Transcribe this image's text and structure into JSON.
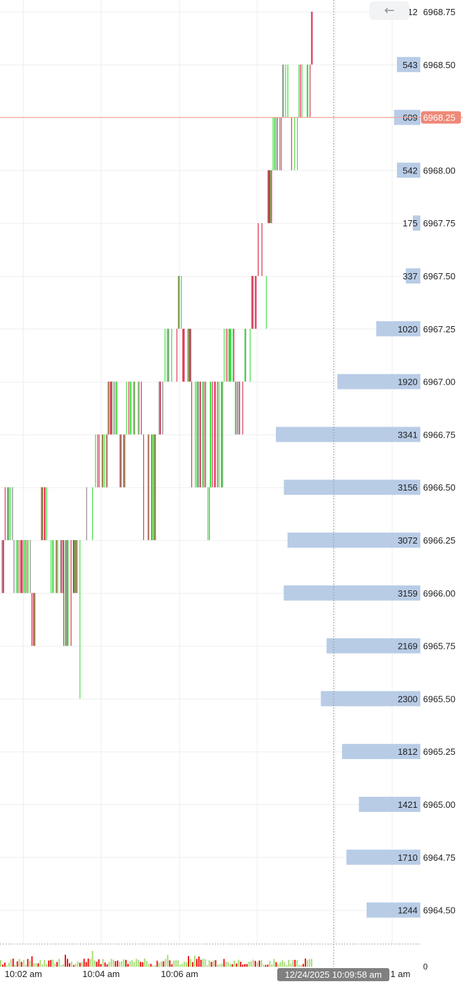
{
  "toolbar": {
    "back_icon": "arrow-left-icon"
  },
  "colors": {
    "up": "#44dd44",
    "down": "#dd3355",
    "neutral": "#888888",
    "profile_bar": "#b8cce6",
    "last_price_line": "#f5a89a",
    "last_price_badge": "#ee8877",
    "crosshair_badge": "#808080",
    "volume_up": "#a8dc78",
    "volume_down": "#ee1111",
    "grid": "#eeeeee"
  },
  "chart_data": {
    "type": "bar",
    "description_kind": "tick-chart-with-volume-profile",
    "price_axis": {
      "min": 6964.25,
      "max": 6968.875,
      "tick_step": 0.25,
      "ticks": [
        "6964.50",
        "6964.75",
        "6965.00",
        "6965.25",
        "6965.50",
        "6965.75",
        "6966.00",
        "6966.25",
        "6966.50",
        "6966.75",
        "6967.00",
        "6967.25",
        "6967.50",
        "6967.75",
        "6968.00",
        "6968.25",
        "6968.50",
        "6968.75"
      ]
    },
    "time_axis": {
      "labels": [
        "10:02 am",
        "10:04 am",
        "10:06 am",
        "1 am"
      ]
    },
    "last_price": "6968.25",
    "crosshair_label": "12/24/2025 10:09:58 am",
    "volume_axis_label": "0",
    "volume_profile": [
      {
        "price": 6968.75,
        "volume": 12
      },
      {
        "price": 6968.5,
        "volume": 543
      },
      {
        "price": 6968.25,
        "volume": 609
      },
      {
        "price": 6968.0,
        "volume": 542
      },
      {
        "price": 6967.75,
        "volume": 175
      },
      {
        "price": 6967.5,
        "volume": 337
      },
      {
        "price": 6967.25,
        "volume": 1020
      },
      {
        "price": 6967.0,
        "volume": 1920
      },
      {
        "price": 6966.75,
        "volume": 3341
      },
      {
        "price": 6966.5,
        "volume": 3156
      },
      {
        "price": 6966.25,
        "volume": 3072
      },
      {
        "price": 6966.0,
        "volume": 3159
      },
      {
        "price": 6965.75,
        "volume": 2169
      },
      {
        "price": 6965.5,
        "volume": 2300
      },
      {
        "price": 6965.25,
        "volume": 1812
      },
      {
        "price": 6965.0,
        "volume": 1421
      },
      {
        "price": 6964.75,
        "volume": 1710
      },
      {
        "price": 6964.5,
        "volume": 1244
      }
    ],
    "price_path": [
      [
        6966.0,
        6966.25,
        5
      ],
      [
        6966.25,
        6966.5,
        12
      ],
      [
        6966.0,
        6966.25,
        25
      ],
      [
        6965.75,
        6966.0,
        8
      ],
      [
        6966.25,
        6966.5,
        15
      ],
      [
        6966.0,
        6966.25,
        20
      ],
      [
        6965.75,
        6966.25,
        12
      ],
      [
        6966.0,
        6966.25,
        10
      ],
      [
        6965.5,
        6966.25,
        5
      ],
      [
        6966.25,
        6966.5,
        15
      ],
      [
        6966.5,
        6966.75,
        18
      ],
      [
        6966.75,
        6967.0,
        15
      ],
      [
        6966.5,
        6966.75,
        10
      ],
      [
        6966.75,
        6967.0,
        22
      ],
      [
        6966.25,
        6966.75,
        18
      ],
      [
        6966.75,
        6967.0,
        12
      ],
      [
        6967.0,
        6967.25,
        18
      ],
      [
        6967.25,
        6967.5,
        6
      ],
      [
        6967.0,
        6967.25,
        12
      ],
      [
        6966.5,
        6967.0,
        20
      ],
      [
        6966.25,
        6966.5,
        5
      ],
      [
        6966.5,
        6967.0,
        18
      ],
      [
        6967.0,
        6967.25,
        15
      ],
      [
        6966.75,
        6967.0,
        12
      ],
      [
        6967.0,
        6967.25,
        10
      ],
      [
        6967.25,
        6967.5,
        8
      ],
      [
        6967.5,
        6967.75,
        8
      ],
      [
        6967.25,
        6967.5,
        6
      ],
      [
        6967.75,
        6968.0,
        8
      ],
      [
        6968.0,
        6968.25,
        12
      ],
      [
        6968.25,
        6968.5,
        12
      ],
      [
        6968.0,
        6968.25,
        10
      ],
      [
        6968.25,
        6968.5,
        18
      ],
      [
        6968.5,
        6968.75,
        3
      ]
    ],
    "volume_bars_count": 150
  }
}
